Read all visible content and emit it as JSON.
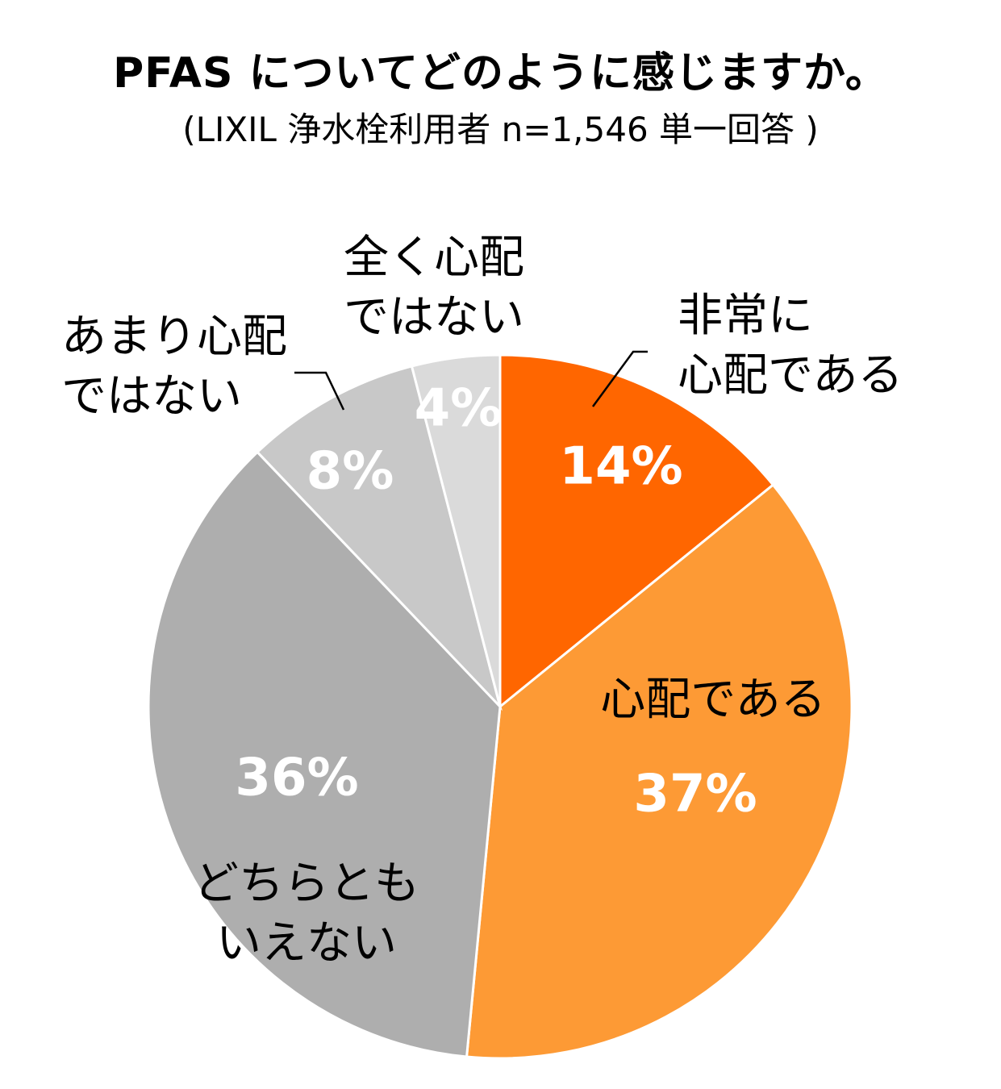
{
  "chart_data": {
    "type": "pie",
    "title": "PFAS についてどのように感じますか。",
    "subtitle": "(LIXIL 浄水栓利用者 n=1,546 単一回答 )",
    "slices": [
      {
        "label_lines": [
          "非常に",
          "心配である"
        ],
        "value": 14,
        "value_label": "14%",
        "color": "#FF6600"
      },
      {
        "label_lines": [
          "心配である"
        ],
        "value": 37,
        "value_label": "37%",
        "color": "#FD9A35"
      },
      {
        "label_lines": [
          "どちらとも",
          "いえない"
        ],
        "value": 36,
        "value_label": "36%",
        "color": "#AEAEAE"
      },
      {
        "label_lines": [
          "あまり心配",
          "ではない"
        ],
        "value": 8,
        "value_label": "8%",
        "color": "#C8C8C8"
      },
      {
        "label_lines": [
          "全く心配",
          "ではない"
        ],
        "value": 4,
        "value_label": "4%",
        "color": "#DADADA"
      }
    ],
    "start_angle": "12 o'clock",
    "direction": "clockwise",
    "legend": "none"
  }
}
